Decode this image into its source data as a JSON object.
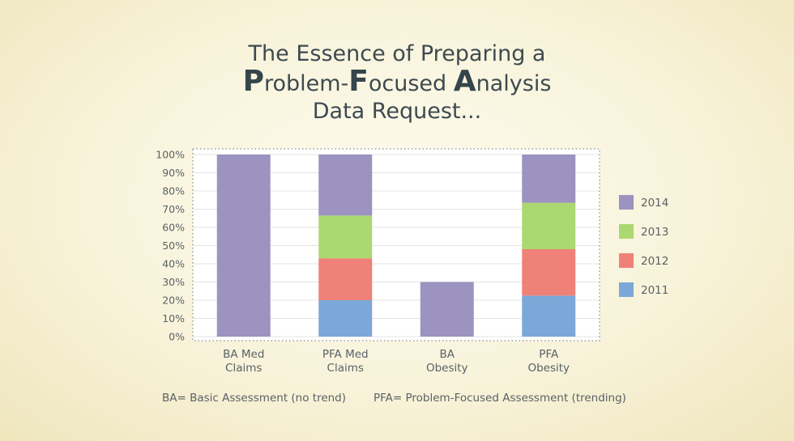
{
  "title": {
    "line1": "The Essence of Preparing a",
    "line2": [
      {
        "cap": "P",
        "rest": "roblem-"
      },
      {
        "cap": "F",
        "rest": "ocused "
      },
      {
        "cap": "A",
        "rest": "nalysis"
      }
    ],
    "line3": "Data Request..."
  },
  "chart_data": {
    "type": "bar",
    "stacked": true,
    "normalized": true,
    "categories": [
      [
        "BA Med",
        "Claims"
      ],
      [
        "PFA Med",
        "Claims"
      ],
      [
        "BA",
        "Obesity"
      ],
      [
        "PFA",
        "Obesity"
      ]
    ],
    "series": [
      {
        "name": "2011",
        "color": "#7ba8d8",
        "values": [
          0,
          20,
          0,
          22.5
        ]
      },
      {
        "name": "2012",
        "color": "#ef8178",
        "values": [
          0,
          23,
          0,
          25.5
        ]
      },
      {
        "name": "2013",
        "color": "#abd870",
        "values": [
          0,
          23.5,
          0,
          25.5
        ]
      },
      {
        "name": "2014",
        "color": "#9c93c0",
        "values": [
          100,
          33.5,
          30,
          26.5
        ]
      }
    ],
    "yticks": [
      "0%",
      "10%",
      "20%",
      "30%",
      "40%",
      "50%",
      "60%",
      "70%",
      "80%",
      "90%",
      "100%"
    ],
    "ylim": [
      0,
      100
    ],
    "legend_order": [
      "2014",
      "2013",
      "2012",
      "2011"
    ],
    "legend_position": "right",
    "grid": true
  },
  "footnotes": {
    "ba": "BA= Basic Assessment (no trend)",
    "pfa": "PFA= Problem-Focused Assessment (trending)"
  }
}
